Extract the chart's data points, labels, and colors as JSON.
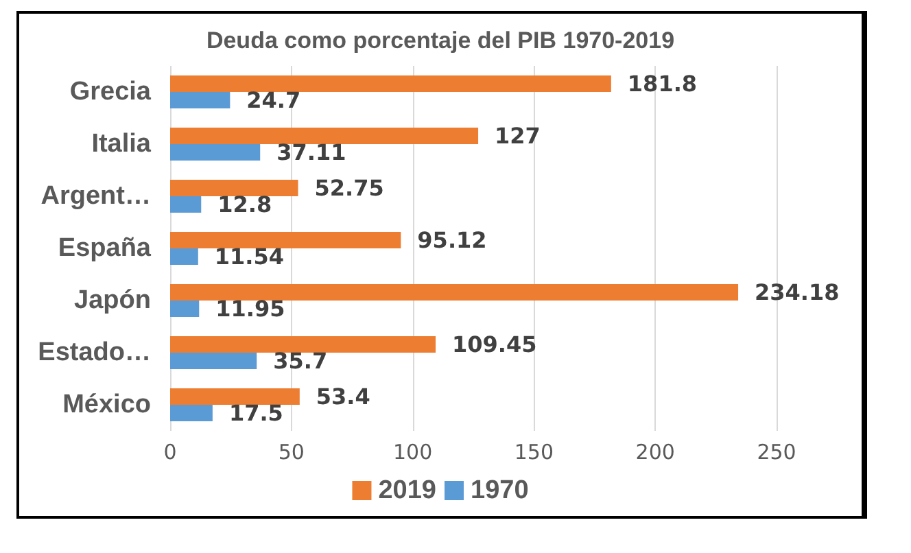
{
  "chart_data": {
    "type": "bar",
    "orientation": "horizontal",
    "title": "Deuda como porcentaje del PIB 1970-2019",
    "categories": [
      "Grecia",
      "Italia",
      "Argent…",
      "España",
      "Japón",
      "Estado…",
      "México"
    ],
    "series": [
      {
        "name": "2019",
        "color": "#ed7d31",
        "values": [
          181.8,
          127,
          52.75,
          95.12,
          234.18,
          109.45,
          53.4
        ]
      },
      {
        "name": "1970",
        "color": "#5b9bd5",
        "values": [
          24.7,
          37.11,
          12.8,
          11.54,
          11.95,
          35.7,
          17.5
        ]
      }
    ],
    "xlim": [
      0,
      250
    ],
    "xticks": [
      0,
      50,
      100,
      150,
      200,
      250
    ],
    "grid": "x",
    "legend": "bottom",
    "data_labels": true
  }
}
